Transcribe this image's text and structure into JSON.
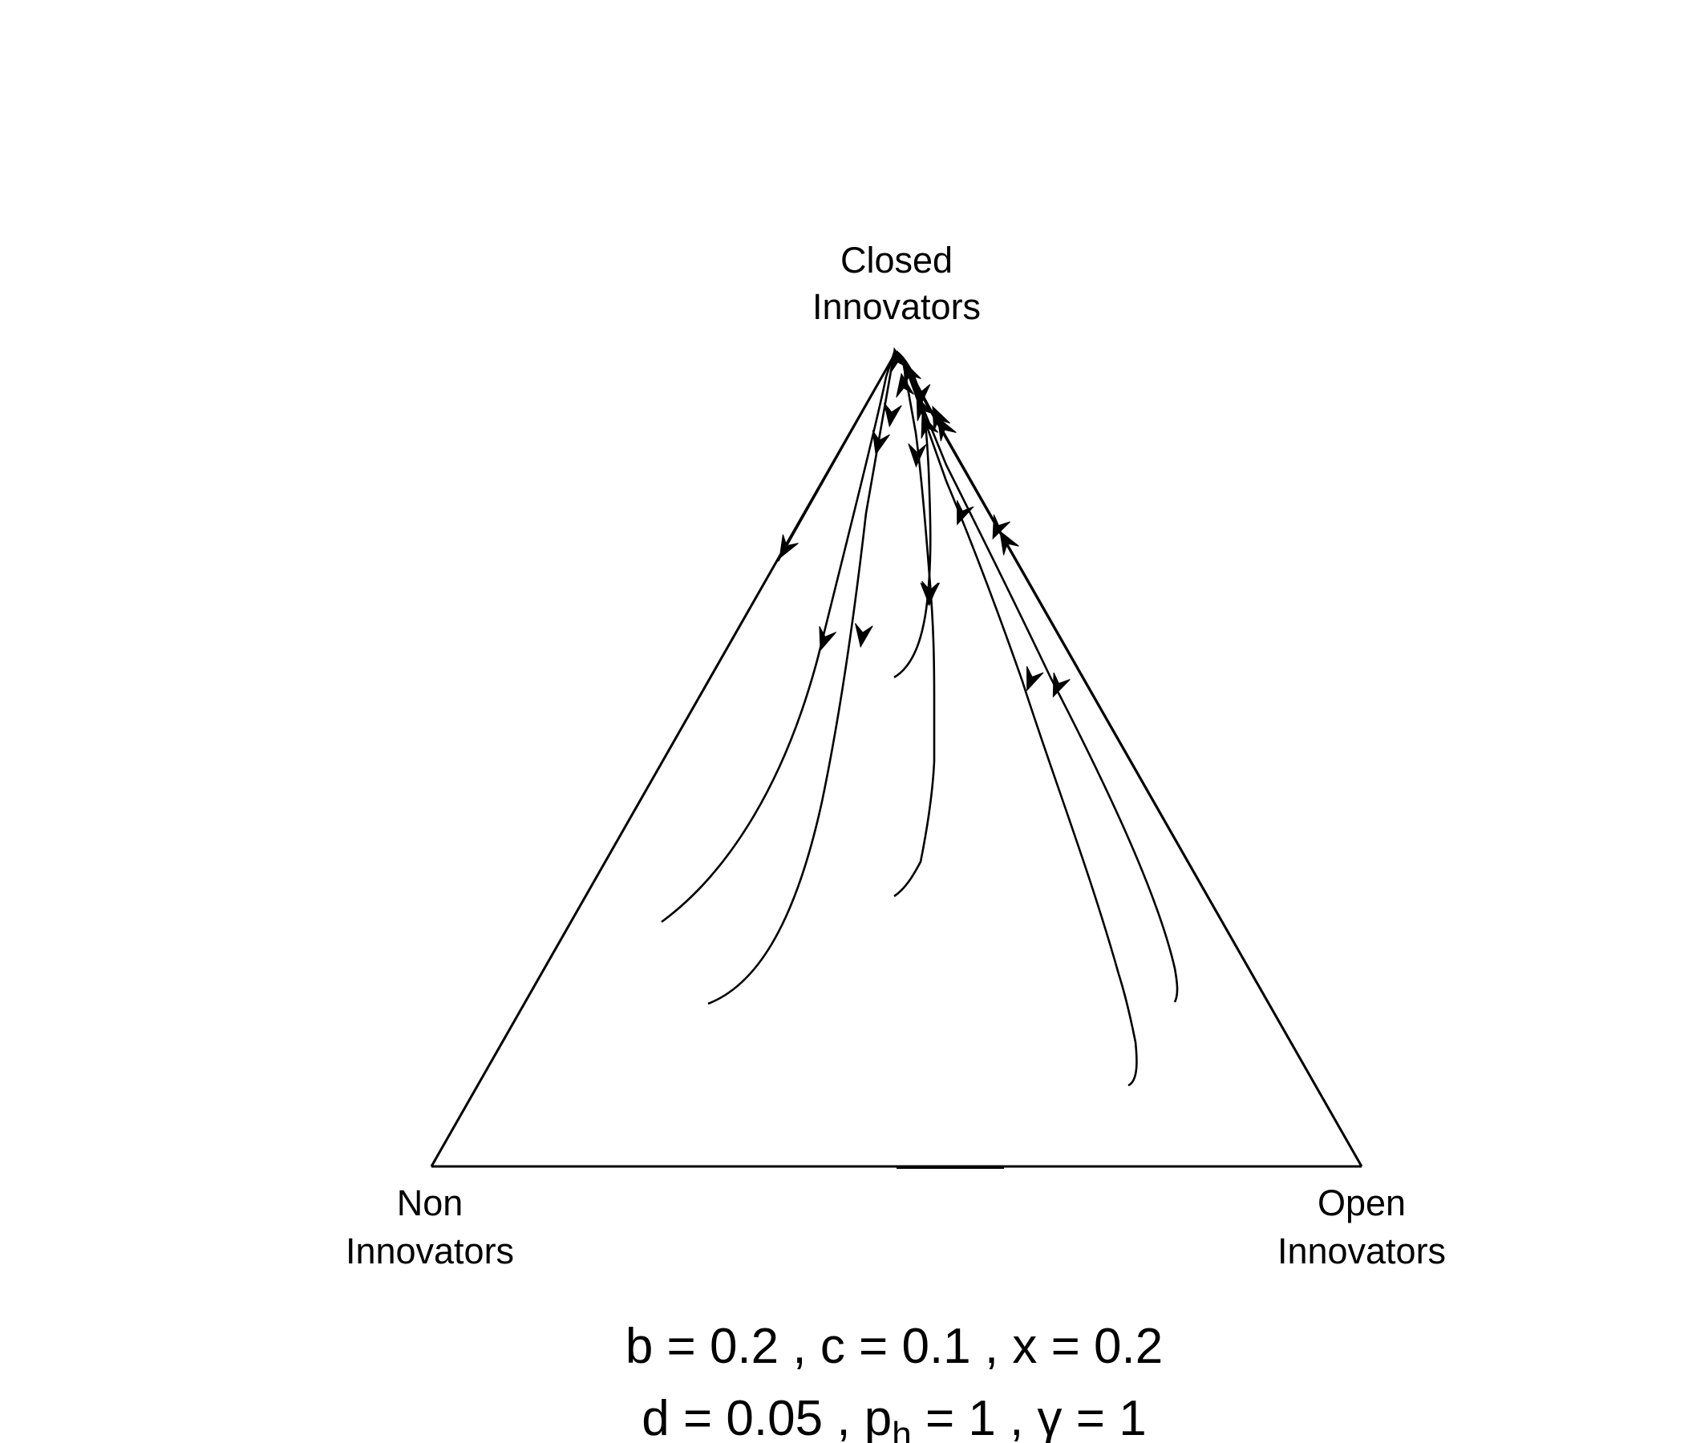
{
  "vertices": {
    "top": {
      "line1": "Closed",
      "line2": "Innovators"
    },
    "left": {
      "line1": "Non",
      "line2": "Innovators"
    },
    "right": {
      "line1": "Open",
      "line2": "Innovators"
    }
  },
  "parameters": {
    "line1": "b =  0.2 , c =  0.1 , x =  0.2",
    "line2_prefix": "d =  0.05 , p",
    "line2_sub": "h",
    "line2_suffix": " = 1 , γ =  1"
  },
  "trajectories": [
    {
      "name": "left-edge-trajectory",
      "arrows": 1
    },
    {
      "name": "trajectory-1",
      "arrows": 2
    },
    {
      "name": "trajectory-2",
      "arrows": 2
    },
    {
      "name": "trajectory-3",
      "arrows": 2
    },
    {
      "name": "trajectory-4",
      "arrows": 2
    },
    {
      "name": "trajectory-5",
      "arrows": 2
    },
    {
      "name": "trajectory-6",
      "arrows": 2
    },
    {
      "name": "right-edge-trajectory",
      "arrows": 2
    }
  ]
}
